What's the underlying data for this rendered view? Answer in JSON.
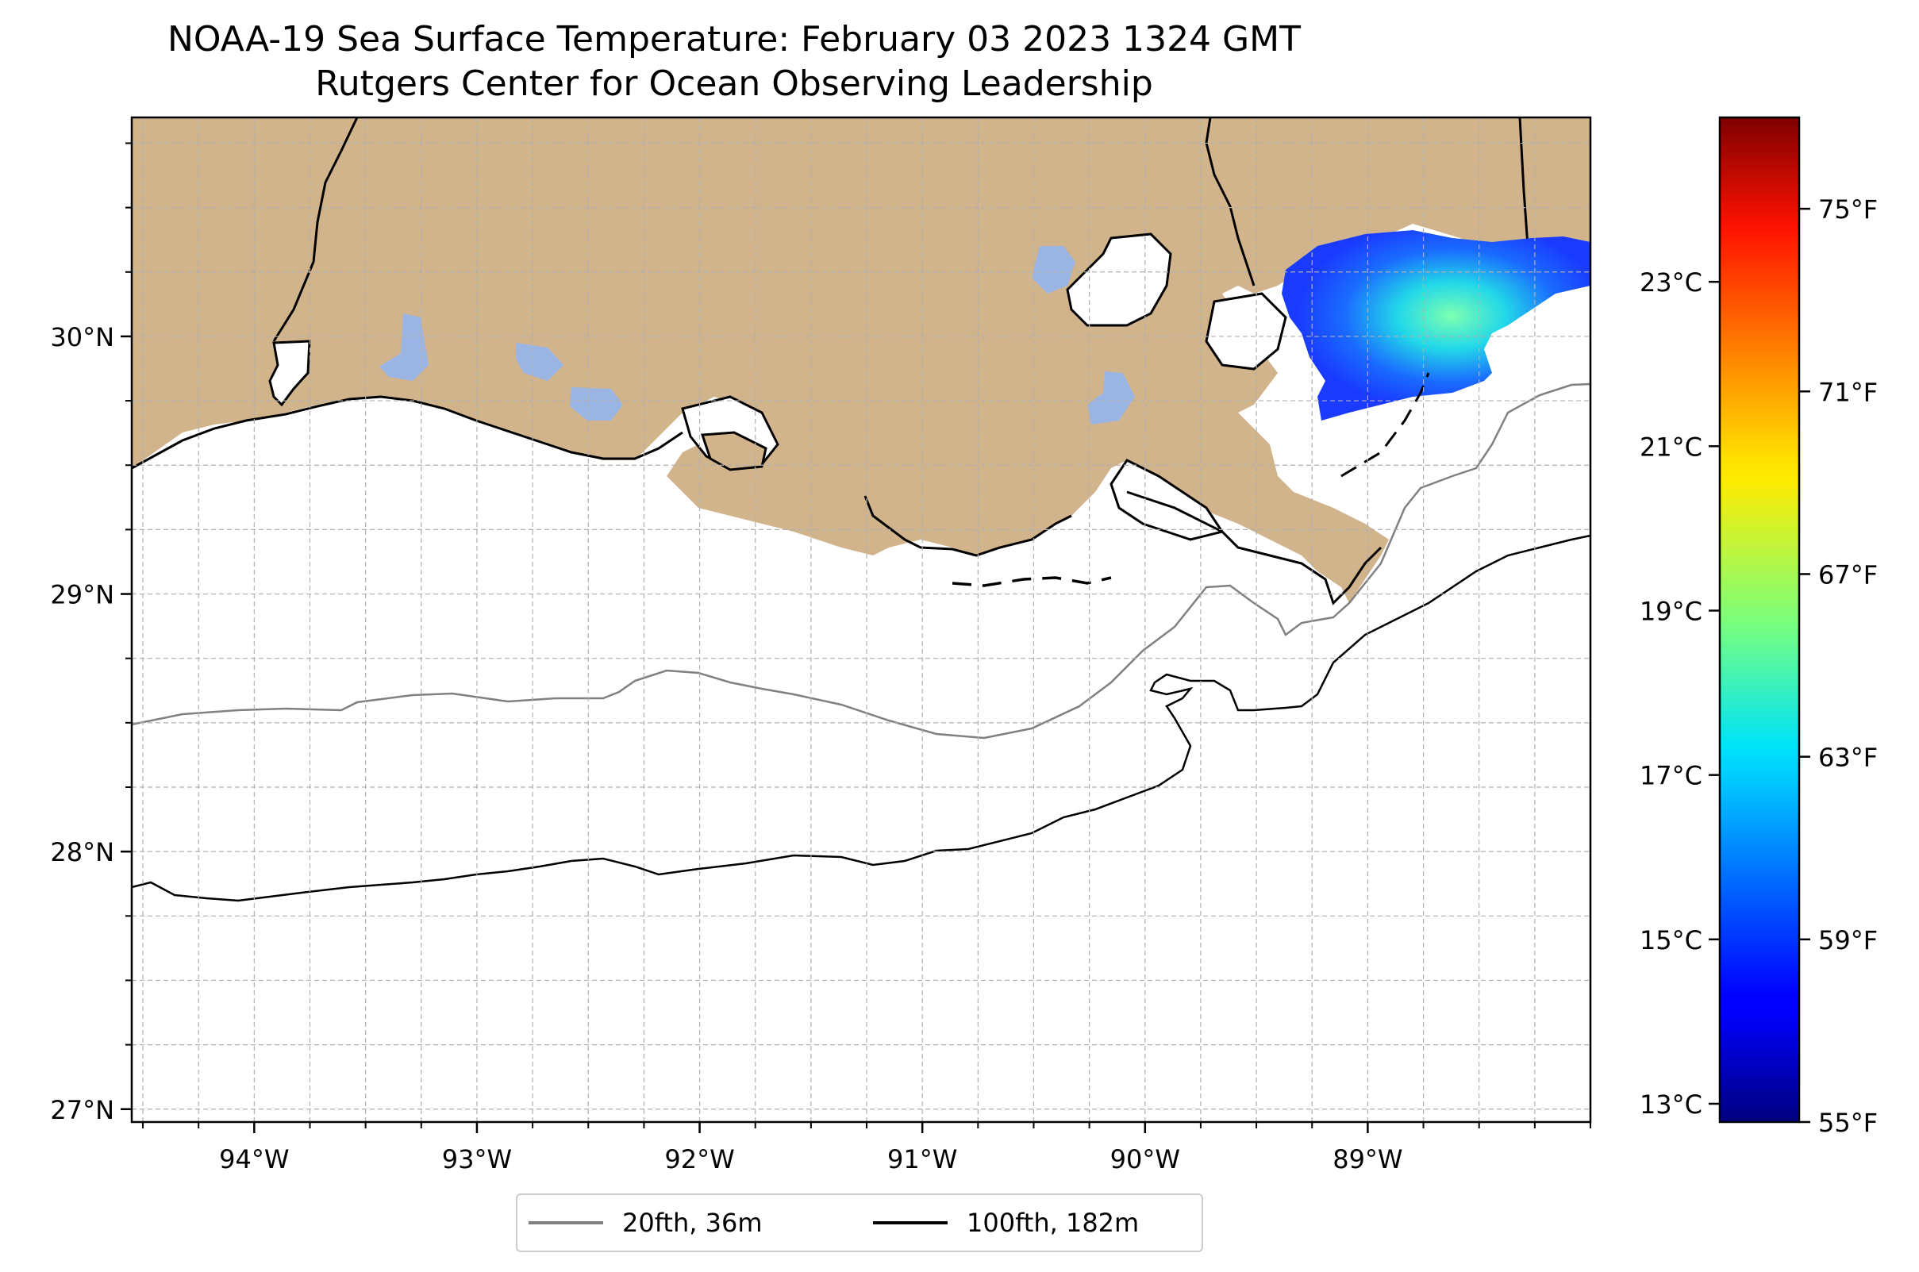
{
  "title": {
    "line1": "NOAA-19 Sea Surface Temperature: February 03 2023 1324 GMT",
    "line2": "Rutgers Center for Ocean Observing Leadership"
  },
  "map": {
    "lat_ticks": [
      "30°N",
      "29°N",
      "28°N",
      "27°N"
    ],
    "lon_ticks": [
      "94°W",
      "93°W",
      "92°W",
      "91°W",
      "90°W",
      "89°W"
    ],
    "lat_values": [
      30,
      29,
      28,
      27
    ],
    "lon_values": [
      -94,
      -93,
      -92,
      -91,
      -90,
      -89
    ],
    "extent": {
      "lon": [
        -94.55,
        -88.0
      ],
      "lat": [
        26.95,
        30.85
      ]
    },
    "colors": {
      "land": "#d2b48c",
      "lakes": "#9ab5e4",
      "coast": "#000000",
      "isobath_20": "#808080",
      "isobath_100": "#000000",
      "grid": "#b0b0b0"
    }
  },
  "colorbar": {
    "celsius_ticks": [
      "23°C",
      "21°C",
      "19°C",
      "17°C",
      "15°C",
      "13°C"
    ],
    "celsius_values": [
      23,
      21,
      19,
      17,
      15,
      13
    ],
    "fahrenheit_ticks": [
      "75°F",
      "71°F",
      "67°F",
      "63°F",
      "59°F",
      "55°F"
    ],
    "fahrenheit_values": [
      75,
      71,
      67,
      63,
      59,
      55
    ],
    "range_f": [
      55,
      77
    ],
    "colormap": "jet"
  },
  "legend": {
    "items": [
      {
        "label": "20fth, 36m",
        "color": "#808080"
      },
      {
        "label": "100fth, 182m",
        "color": "#000000"
      }
    ]
  }
}
